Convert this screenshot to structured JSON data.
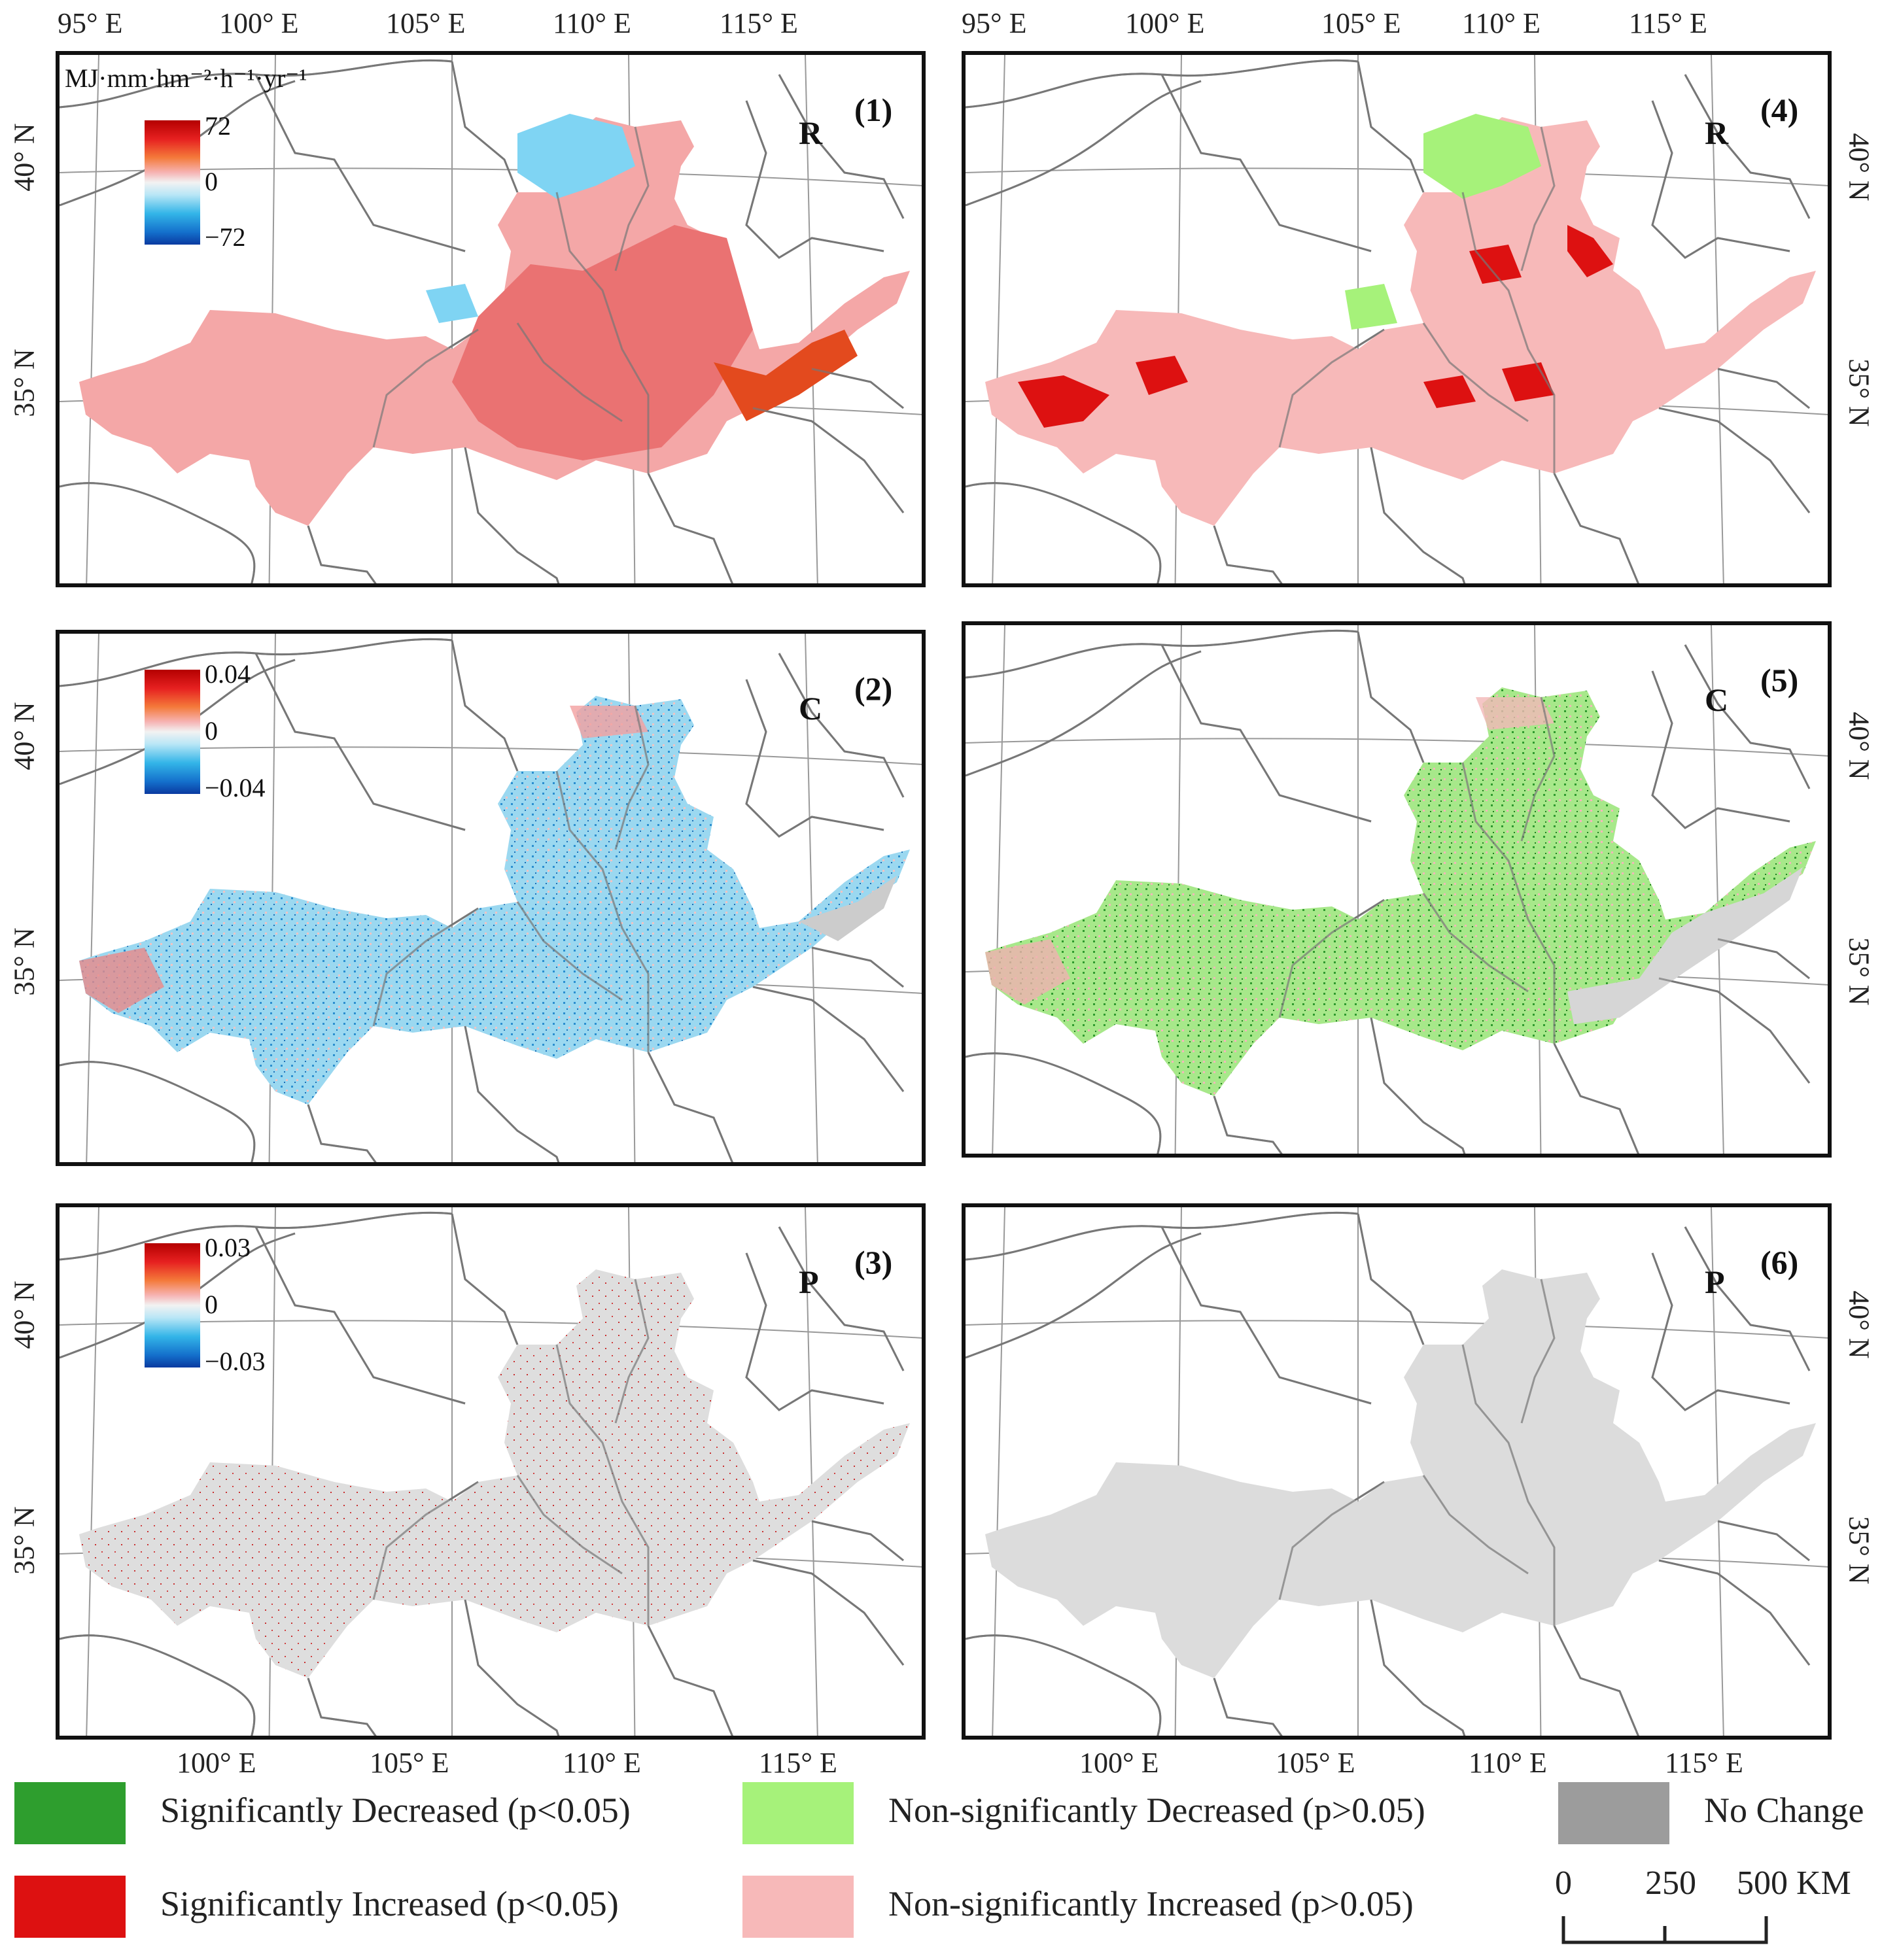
{
  "colors": {
    "sig_decreased": "#2e9e2e",
    "sig_increased": "#dd1111",
    "nonsig_decreased": "#a6f27a",
    "nonsig_increased": "#f7b9b9",
    "no_change": "#9c9c9c",
    "r_fill": "#f29a9a",
    "r_dark": "#e86666",
    "r_cyan": "#7dd3f2",
    "grey_fill": "#dcdcdc",
    "c_blue": "#8fd3ef",
    "c_green": "#9fe57c"
  },
  "unit_label": "MJ·mm·hm⁻²·h⁻¹·yr⁻¹",
  "lon_ticks": [
    "95° E",
    "100° E",
    "105° E",
    "110° E",
    "115° E"
  ],
  "lat_ticks": [
    "40° N",
    "35° N"
  ],
  "panels": [
    {
      "id": "1",
      "number": "(1)",
      "factor": "R",
      "legend_max": "72",
      "legend_mid": "0",
      "legend_min": "−72"
    },
    {
      "id": "2",
      "number": "(2)",
      "factor": "C",
      "legend_max": "0.04",
      "legend_mid": "0",
      "legend_min": "−0.04"
    },
    {
      "id": "3",
      "number": "(3)",
      "factor": "P",
      "legend_max": "0.03",
      "legend_mid": "0",
      "legend_min": "−0.03"
    },
    {
      "id": "4",
      "number": "(4)",
      "factor": "R"
    },
    {
      "id": "5",
      "number": "(5)",
      "factor": "C"
    },
    {
      "id": "6",
      "number": "(6)",
      "factor": "P"
    }
  ],
  "legend": {
    "sig_decreased": "Significantly Decreased (p<0.05)",
    "sig_increased": "Significantly Increased (p<0.05)",
    "nonsig_decreased": "Non-significantly Decreased (p>0.05)",
    "nonsig_increased": "Non-significantly Increased (p>0.05)",
    "no_change": "No Change"
  },
  "scale_bar": {
    "l0": "0",
    "l1": "250",
    "l2": "500 KM"
  }
}
